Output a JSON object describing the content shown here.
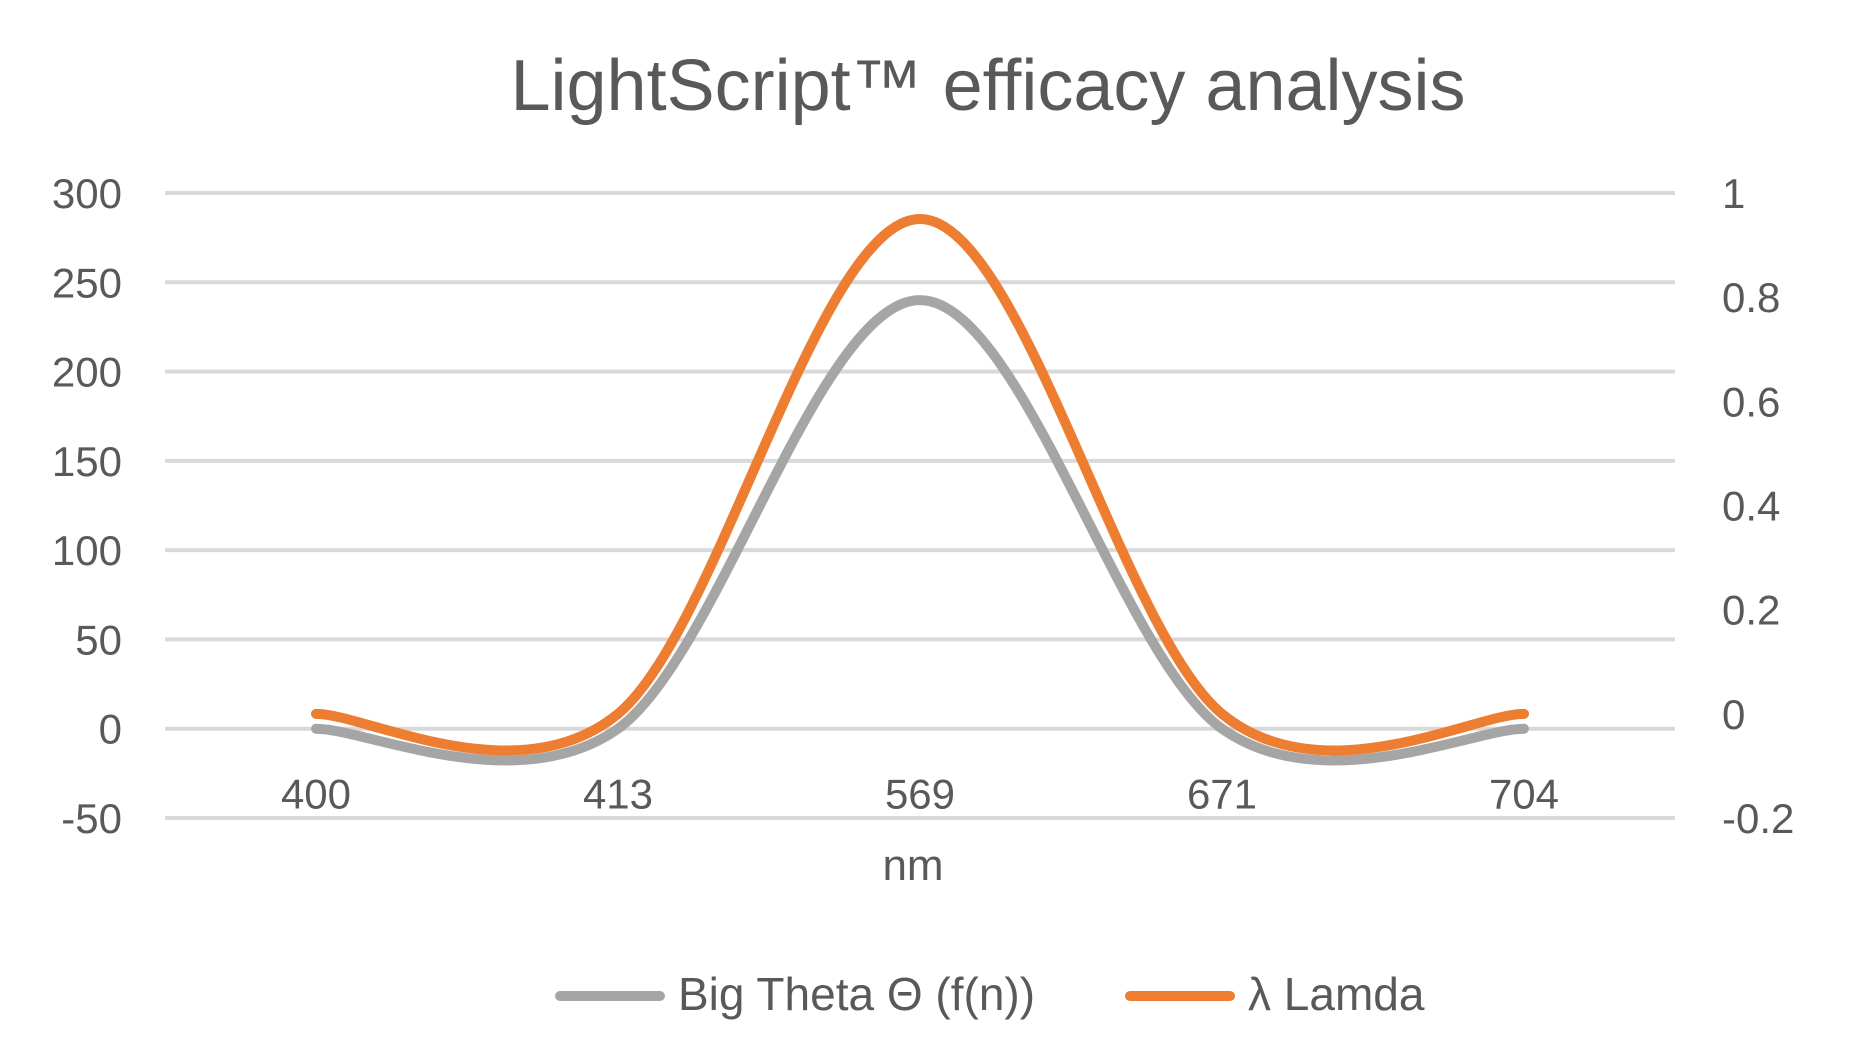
{
  "chart_data": {
    "type": "line",
    "title": "LightScript™ efficacy analysis",
    "xlabel": "nm",
    "ylabel": "",
    "y2label": "",
    "categories": [
      "400",
      "413",
      "569",
      "671",
      "704"
    ],
    "ylim": [
      -50,
      300
    ],
    "yticks": [
      "-50",
      "0",
      "50",
      "100",
      "150",
      "200",
      "250",
      "300"
    ],
    "y2lim": [
      -0.2,
      1.0
    ],
    "y2ticks": [
      "-0.2",
      "0",
      "0.2",
      "0.4",
      "0.6",
      "0.8",
      "1"
    ],
    "grid": true,
    "legend_position": "bottom",
    "smooth": true,
    "series": [
      {
        "name": "Big Theta Θ (f(n))",
        "axis": "left",
        "color": "#a5a5a5",
        "values": [
          0,
          0,
          240,
          0,
          0
        ]
      },
      {
        "name": "λ Lamda",
        "axis": "right",
        "color": "#ed7d31",
        "values": [
          0,
          0,
          0.95,
          0,
          0
        ]
      }
    ]
  }
}
